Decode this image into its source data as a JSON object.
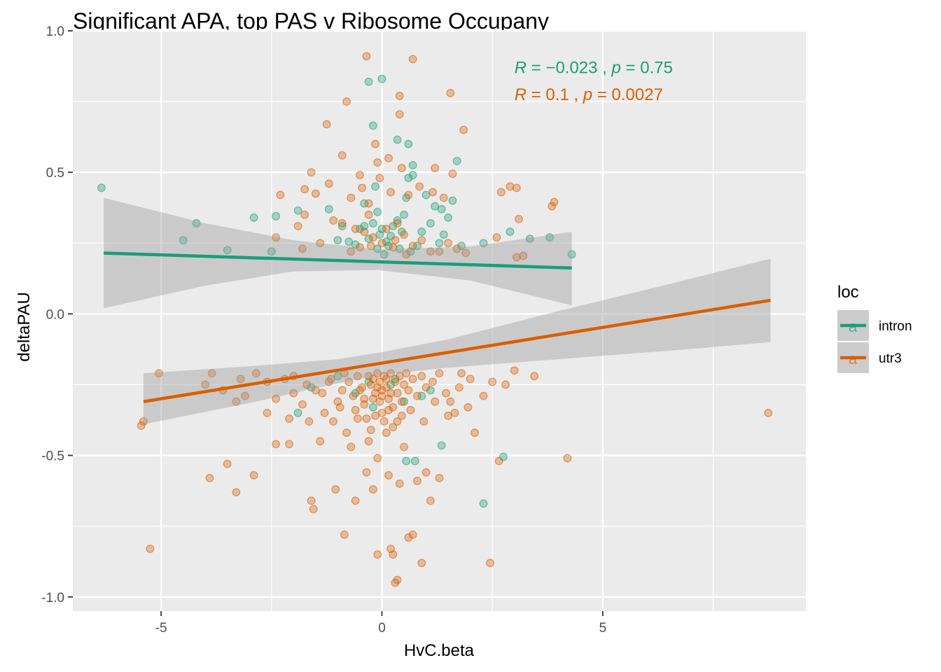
{
  "chart_data": {
    "type": "scatter",
    "title": "Significant  APA, top PAS v Ribosome Occupany",
    "xlabel": "HvC.beta",
    "ylabel": "deltaPAU",
    "xlim": [
      -7,
      9.6
    ],
    "ylim": [
      -1.05,
      1.0
    ],
    "x_ticks": [
      -5,
      0,
      5
    ],
    "x_tick_labels": [
      "-5",
      "0",
      "5"
    ],
    "y_ticks": [
      -1.0,
      -0.5,
      0.0,
      0.5,
      1.0
    ],
    "y_tick_labels": [
      "-1.0",
      "-0.5",
      "0.0",
      "0.5",
      "1.0"
    ],
    "grid": true,
    "legend": {
      "title": "loc",
      "placement": "right",
      "entries": [
        {
          "label": "intron",
          "key_glyph": "a",
          "color": "#1b9e77"
        },
        {
          "label": "utr3",
          "key_glyph": "a",
          "color": "#d95f02"
        }
      ]
    },
    "colors": {
      "intron": "#1b9e77",
      "utr3": "#d95f02",
      "band": "#999999",
      "panel": "#ebebeb",
      "grid": "#ffffff"
    },
    "annotations": [
      {
        "series": "intron",
        "r_label": "R",
        "r_value": "−0.023",
        "p_label": "p",
        "p_value": "0.75",
        "x": 3.0,
        "y": 0.85
      },
      {
        "series": "utr3",
        "r_label": "R",
        "r_value": "0.1",
        "p_label": "p",
        "p_value": "0.0027",
        "x": 3.0,
        "y": 0.755
      }
    ],
    "series": [
      {
        "name": "intron",
        "fit": {
          "x": [
            -6.3,
            4.3
          ],
          "y": [
            0.215,
            0.162
          ]
        },
        "band": {
          "x": [
            -6.3,
            -4.0,
            -2.0,
            -0.1,
            2.0,
            4.3
          ],
          "upper": [
            0.41,
            0.32,
            0.26,
            0.228,
            0.238,
            0.29
          ],
          "lower": [
            0.02,
            0.1,
            0.15,
            0.155,
            0.118,
            0.03
          ]
        },
        "points": [
          [
            -6.35,
            0.445
          ],
          [
            -4.2,
            0.32
          ],
          [
            -4.5,
            0.26
          ],
          [
            -3.5,
            0.225
          ],
          [
            -2.9,
            0.34
          ],
          [
            -2.5,
            0.22
          ],
          [
            -2.4,
            0.345
          ],
          [
            -1.9,
            0.365
          ],
          [
            -1.9,
            -0.35
          ],
          [
            -1.2,
            0.37
          ],
          [
            -1.0,
            0.26
          ],
          [
            -0.9,
            0.31
          ],
          [
            -0.75,
            0.255
          ],
          [
            -0.6,
            0.245
          ],
          [
            -0.5,
            0.3
          ],
          [
            -0.4,
            0.31
          ],
          [
            -0.3,
            0.265
          ],
          [
            -0.2,
            0.32
          ],
          [
            -0.15,
            0.45
          ],
          [
            -0.1,
            0.23
          ],
          [
            -0.05,
            0.28
          ],
          [
            0.0,
            0.3
          ],
          [
            0.05,
            0.21
          ],
          [
            0.1,
            0.255
          ],
          [
            0.15,
            0.24
          ],
          [
            0.2,
            0.275
          ],
          [
            0.25,
            0.31
          ],
          [
            0.35,
            0.33
          ],
          [
            0.4,
            0.23
          ],
          [
            0.45,
            0.29
          ],
          [
            0.5,
            0.35
          ],
          [
            0.55,
            0.41
          ],
          [
            0.6,
            0.48
          ],
          [
            0.65,
            0.22
          ],
          [
            0.7,
            0.49
          ],
          [
            0.8,
            0.24
          ],
          [
            0.9,
            0.29
          ],
          [
            1.0,
            0.42
          ],
          [
            1.1,
            0.32
          ],
          [
            1.2,
            0.38
          ],
          [
            1.3,
            0.25
          ],
          [
            1.4,
            0.28
          ],
          [
            1.5,
            0.34
          ],
          [
            1.6,
            0.4
          ],
          [
            1.7,
            0.54
          ],
          [
            1.8,
            0.24
          ],
          [
            2.3,
            0.25
          ],
          [
            2.9,
            0.29
          ],
          [
            3.35,
            0.265
          ],
          [
            3.8,
            0.27
          ],
          [
            4.3,
            0.21
          ],
          [
            -0.3,
            0.82
          ],
          [
            0.0,
            0.83
          ],
          [
            -0.2,
            0.665
          ],
          [
            0.35,
            0.615
          ],
          [
            0.6,
            0.6
          ],
          [
            0.7,
            0.525
          ],
          [
            -0.4,
            0.39
          ],
          [
            -0.1,
            0.36
          ],
          [
            1.35,
            0.37
          ],
          [
            0.55,
            -0.52
          ],
          [
            0.75,
            -0.52
          ],
          [
            1.35,
            -0.465
          ],
          [
            2.3,
            -0.67
          ],
          [
            2.75,
            -0.505
          ],
          [
            -0.3,
            -0.24
          ],
          [
            0.2,
            -0.25
          ],
          [
            -0.6,
            -0.28
          ],
          [
            0.5,
            -0.31
          ],
          [
            -1.0,
            -0.22
          ],
          [
            1.1,
            -0.27
          ],
          [
            -0.2,
            -0.33
          ],
          [
            0.3,
            -0.23
          ],
          [
            -1.6,
            -0.26
          ],
          [
            0.9,
            -0.29
          ]
        ]
      },
      {
        "name": "utr3",
        "fit": {
          "x": [
            -5.4,
            8.8
          ],
          "y": [
            -0.31,
            0.048
          ]
        },
        "band": {
          "x": [
            -5.4,
            -3.0,
            -1.0,
            0.0,
            1.5,
            4.0,
            6.5,
            8.8
          ],
          "upper": [
            -0.21,
            -0.185,
            -0.16,
            -0.135,
            -0.09,
            0.01,
            0.105,
            0.195
          ],
          "lower": [
            -0.39,
            -0.315,
            -0.245,
            -0.215,
            -0.19,
            -0.16,
            -0.13,
            -0.1
          ]
        },
        "points": [
          [
            -0.35,
            0.91
          ],
          [
            0.7,
            0.9
          ],
          [
            -0.8,
            0.75
          ],
          [
            1.55,
            0.78
          ],
          [
            0.4,
            0.77
          ],
          [
            0.4,
            0.705
          ],
          [
            -1.25,
            0.67
          ],
          [
            1.85,
            0.65
          ],
          [
            -0.15,
            0.6
          ],
          [
            0.15,
            0.55
          ],
          [
            -0.9,
            0.56
          ],
          [
            -0.1,
            0.535
          ],
          [
            -1.2,
            0.46
          ],
          [
            -0.5,
            0.49
          ],
          [
            0.45,
            0.515
          ],
          [
            1.2,
            0.515
          ],
          [
            1.6,
            0.495
          ],
          [
            -1.6,
            0.5
          ],
          [
            -0.45,
            0.445
          ],
          [
            -0.05,
            0.48
          ],
          [
            0.85,
            0.45
          ],
          [
            1.15,
            0.43
          ],
          [
            -1.75,
            0.44
          ],
          [
            -2.3,
            0.42
          ],
          [
            -1.5,
            0.425
          ],
          [
            -0.7,
            0.41
          ],
          [
            -0.3,
            0.39
          ],
          [
            0.2,
            0.43
          ],
          [
            0.6,
            0.42
          ],
          [
            1.4,
            0.41
          ],
          [
            2.7,
            0.43
          ],
          [
            2.9,
            0.45
          ],
          [
            3.05,
            0.445
          ],
          [
            3.9,
            0.395
          ],
          [
            3.85,
            0.38
          ],
          [
            3.1,
            0.335
          ],
          [
            -1.75,
            0.35
          ],
          [
            -1.1,
            0.33
          ],
          [
            -0.9,
            0.32
          ],
          [
            -0.6,
            0.3
          ],
          [
            -0.4,
            0.29
          ],
          [
            -0.2,
            0.27
          ],
          [
            0.0,
            0.25
          ],
          [
            0.1,
            0.3
          ],
          [
            0.3,
            0.26
          ],
          [
            0.5,
            0.28
          ],
          [
            0.7,
            0.24
          ],
          [
            0.9,
            0.26
          ],
          [
            1.1,
            0.22
          ],
          [
            1.3,
            0.22
          ],
          [
            1.5,
            0.25
          ],
          [
            1.7,
            0.23
          ],
          [
            2.6,
            0.27
          ],
          [
            3.05,
            0.2
          ],
          [
            3.2,
            0.205
          ],
          [
            -2.4,
            0.27
          ],
          [
            -1.8,
            0.23
          ],
          [
            -0.7,
            0.22
          ],
          [
            -0.5,
            0.235
          ],
          [
            -0.25,
            0.24
          ],
          [
            0.25,
            0.235
          ],
          [
            0.55,
            0.21
          ],
          [
            1.9,
            0.215
          ],
          [
            -1.9,
            0.31
          ],
          [
            -1.4,
            0.25
          ],
          [
            -0.3,
            0.35
          ],
          [
            0.35,
            0.32
          ],
          [
            -5.4,
            -0.38
          ],
          [
            -5.45,
            -0.395
          ],
          [
            -5.25,
            -0.83
          ],
          [
            -5.05,
            -0.21
          ],
          [
            -4.0,
            -0.25
          ],
          [
            -3.85,
            -0.21
          ],
          [
            -3.9,
            -0.58
          ],
          [
            -3.6,
            -0.27
          ],
          [
            -3.5,
            -0.53
          ],
          [
            -3.3,
            -0.63
          ],
          [
            -3.3,
            -0.31
          ],
          [
            -3.2,
            -0.23
          ],
          [
            -3.1,
            -0.29
          ],
          [
            -2.9,
            -0.57
          ],
          [
            -2.85,
            -0.21
          ],
          [
            -2.6,
            -0.35
          ],
          [
            -2.6,
            -0.24
          ],
          [
            -2.4,
            -0.3
          ],
          [
            -2.4,
            -0.46
          ],
          [
            -2.2,
            -0.23
          ],
          [
            -2.1,
            -0.46
          ],
          [
            -2.0,
            -0.22
          ],
          [
            -2.1,
            -0.37
          ],
          [
            -1.8,
            -0.32
          ],
          [
            -1.65,
            -0.38
          ],
          [
            -1.6,
            -0.66
          ],
          [
            -1.55,
            -0.69
          ],
          [
            -1.5,
            -0.27
          ],
          [
            -1.4,
            -0.45
          ],
          [
            -1.3,
            -0.35
          ],
          [
            -1.2,
            -0.24
          ],
          [
            -1.1,
            -0.38
          ],
          [
            -1.05,
            -0.62
          ],
          [
            -1.0,
            -0.31
          ],
          [
            -0.9,
            -0.27
          ],
          [
            -0.85,
            -0.78
          ],
          [
            -0.8,
            -0.42
          ],
          [
            -0.7,
            -0.47
          ],
          [
            -0.6,
            -0.66
          ],
          [
            -0.55,
            -0.37
          ],
          [
            -0.5,
            -0.27
          ],
          [
            -0.4,
            -0.3
          ],
          [
            -0.35,
            -0.56
          ],
          [
            -0.3,
            -0.45
          ],
          [
            -0.2,
            -0.62
          ],
          [
            -0.1,
            -0.51
          ],
          [
            -0.1,
            -0.85
          ],
          [
            0.0,
            -0.35
          ],
          [
            0.1,
            -0.42
          ],
          [
            0.15,
            -0.57
          ],
          [
            0.2,
            -0.83
          ],
          [
            0.25,
            -0.85
          ],
          [
            0.3,
            -0.95
          ],
          [
            0.35,
            -0.94
          ],
          [
            0.4,
            -0.6
          ],
          [
            0.5,
            -0.47
          ],
          [
            0.6,
            -0.79
          ],
          [
            0.7,
            -0.78
          ],
          [
            0.8,
            -0.59
          ],
          [
            0.9,
            -0.88
          ],
          [
            0.95,
            -0.38
          ],
          [
            1.0,
            -0.56
          ],
          [
            1.1,
            -0.66
          ],
          [
            1.2,
            -0.31
          ],
          [
            1.3,
            -0.58
          ],
          [
            1.45,
            -0.28
          ],
          [
            1.55,
            -0.31
          ],
          [
            1.65,
            -0.35
          ],
          [
            1.8,
            -0.21
          ],
          [
            1.95,
            -0.33
          ],
          [
            2.1,
            -0.42
          ],
          [
            2.3,
            -0.29
          ],
          [
            2.45,
            -0.88
          ],
          [
            2.5,
            -0.24
          ],
          [
            2.65,
            -0.52
          ],
          [
            2.8,
            -0.25
          ],
          [
            3.0,
            -0.2
          ],
          [
            3.45,
            -0.22
          ],
          [
            4.2,
            -0.51
          ],
          [
            8.75,
            -0.35
          ],
          [
            -0.3,
            -0.22
          ],
          [
            -0.25,
            -0.25
          ],
          [
            -0.2,
            -0.23
          ],
          [
            -0.15,
            -0.28
          ],
          [
            -0.1,
            -0.21
          ],
          [
            -0.05,
            -0.24
          ],
          [
            0.0,
            -0.27
          ],
          [
            0.05,
            -0.22
          ],
          [
            0.1,
            -0.26
          ],
          [
            0.15,
            -0.3
          ],
          [
            0.2,
            -0.21
          ],
          [
            0.25,
            -0.33
          ],
          [
            0.3,
            -0.24
          ],
          [
            0.35,
            -0.28
          ],
          [
            0.4,
            -0.22
          ],
          [
            0.45,
            -0.31
          ],
          [
            0.5,
            -0.25
          ],
          [
            0.55,
            -0.21
          ],
          [
            0.6,
            -0.27
          ],
          [
            0.7,
            -0.23
          ],
          [
            0.8,
            -0.29
          ],
          [
            0.9,
            -0.22
          ],
          [
            1.0,
            -0.26
          ],
          [
            1.15,
            -0.24
          ],
          [
            1.3,
            -0.21
          ],
          [
            -0.4,
            -0.32
          ],
          [
            -0.45,
            -0.26
          ],
          [
            -0.55,
            -0.22
          ],
          [
            -0.65,
            -0.29
          ],
          [
            -0.75,
            -0.24
          ],
          [
            -0.85,
            -0.21
          ],
          [
            -0.95,
            -0.33
          ],
          [
            -1.15,
            -0.23
          ],
          [
            -1.35,
            -0.28
          ],
          [
            -0.15,
            -0.36
          ],
          [
            0.05,
            -0.38
          ],
          [
            0.25,
            -0.4
          ],
          [
            -0.25,
            -0.41
          ],
          [
            0.45,
            -0.36
          ],
          [
            -0.6,
            -0.34
          ],
          [
            0.65,
            -0.34
          ],
          [
            -0.05,
            -0.31
          ],
          [
            0.15,
            -0.34
          ],
          [
            -0.35,
            -0.37
          ],
          [
            0.35,
            -0.38
          ],
          [
            -0.2,
            -0.3
          ],
          [
            0.0,
            -0.29
          ],
          [
            0.2,
            -0.28
          ],
          [
            -0.1,
            -0.26
          ],
          [
            0.1,
            -0.23
          ],
          [
            1.75,
            -0.26
          ],
          [
            2.0,
            -0.23
          ],
          [
            -1.7,
            -0.25
          ],
          [
            -2.0,
            -0.28
          ],
          [
            1.5,
            -0.36
          ]
        ]
      }
    ]
  }
}
